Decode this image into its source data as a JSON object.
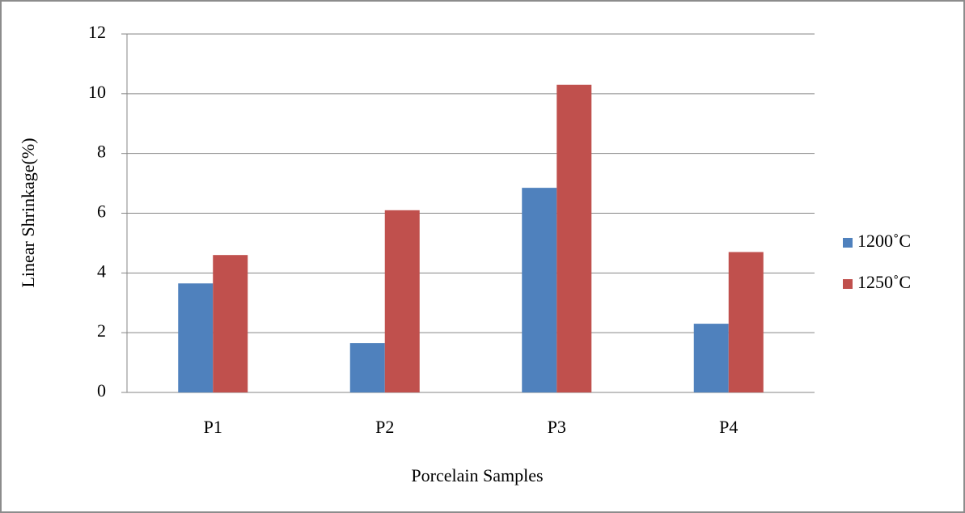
{
  "chart_data": {
    "type": "bar",
    "x_label": "Porcelain Samples",
    "y_label": "Linear  Shrinkage(%)",
    "categories": [
      "P1",
      "P2",
      "P3",
      "P4"
    ],
    "series": [
      {
        "name": "1200˚C",
        "color": "#4f81bd",
        "values": [
          3.65,
          1.65,
          6.85,
          2.3
        ]
      },
      {
        "name": "1250˚C",
        "color": "#c0504d",
        "values": [
          4.6,
          6.1,
          10.3,
          4.7
        ]
      }
    ],
    "ylim": [
      0,
      12
    ],
    "yticks": [
      0,
      2,
      4,
      6,
      8,
      10,
      12
    ],
    "grid": true,
    "legend": "right"
  }
}
